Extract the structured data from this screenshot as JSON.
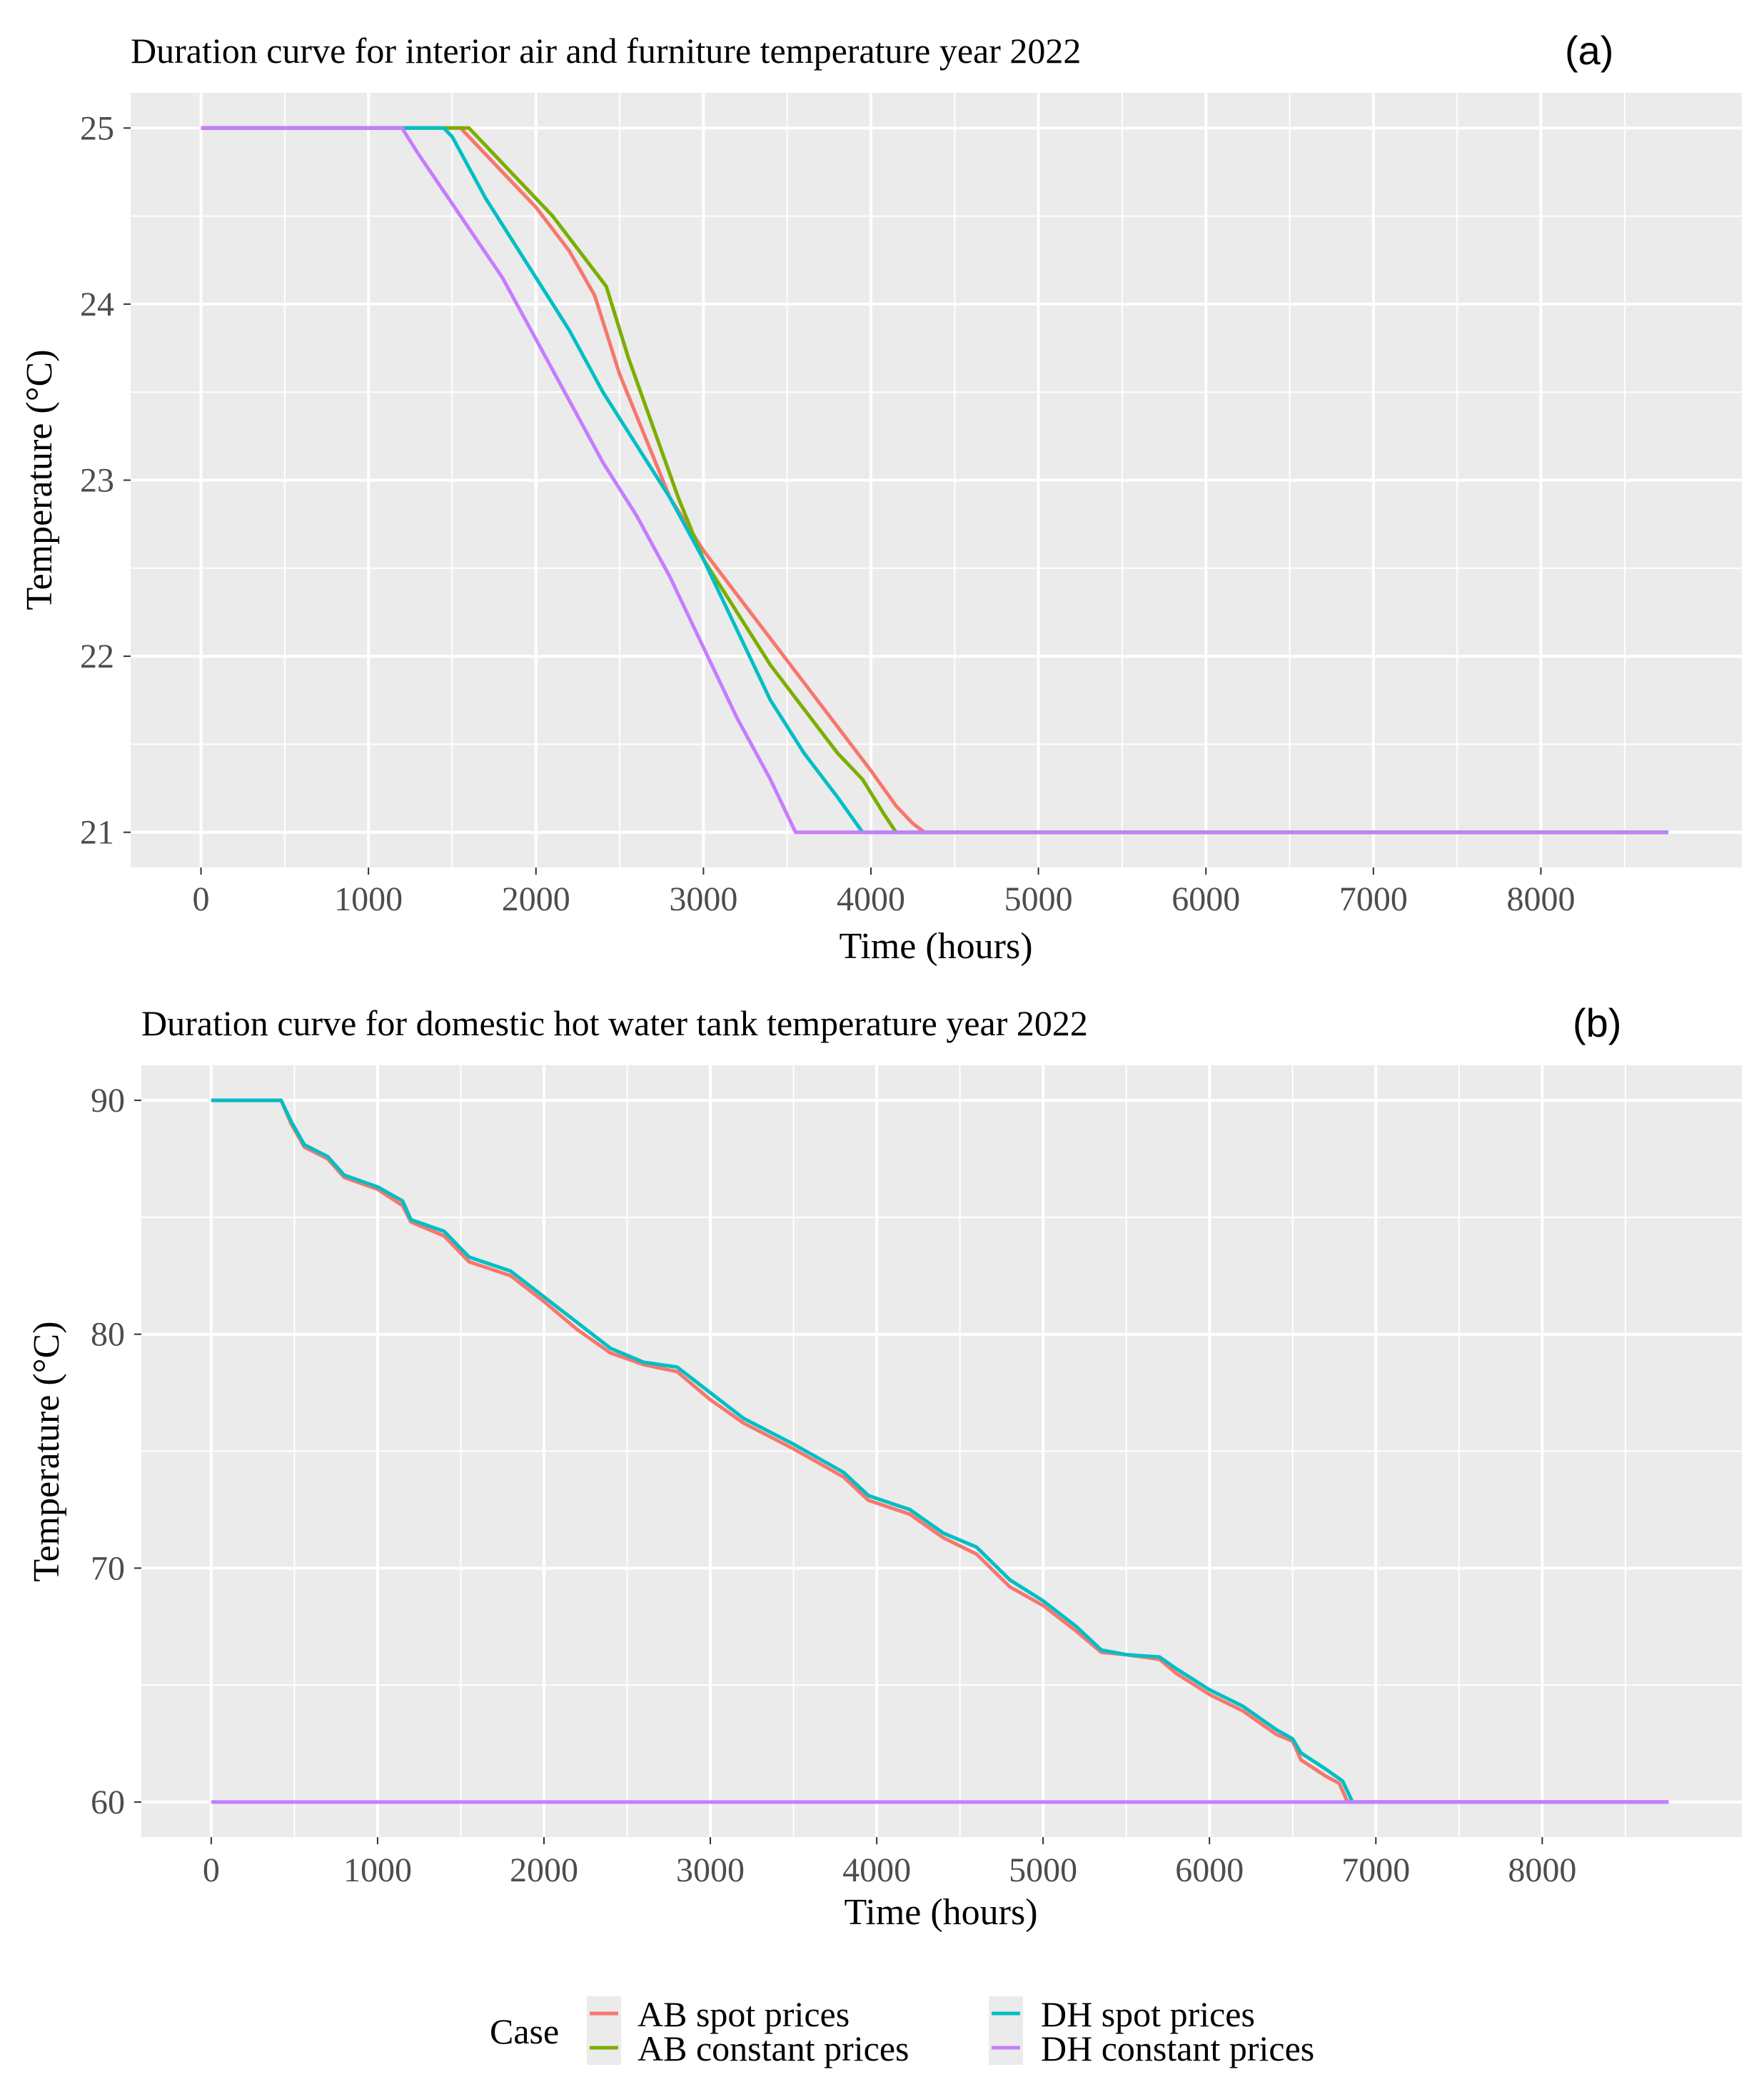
{
  "chart_data": [
    {
      "type": "line",
      "panel": "(a)",
      "title": "Duration curve for interior air and furniture temperature year 2022",
      "xlabel": "Time (hours)",
      "ylabel": "Temperature (°C)",
      "xlim": [
        -420,
        9200
      ],
      "ylim": [
        20.8,
        25.2
      ],
      "xticks": [
        0,
        1000,
        2000,
        3000,
        4000,
        5000,
        6000,
        7000,
        8000
      ],
      "yticks": [
        21,
        22,
        23,
        24,
        25
      ],
      "grid": true,
      "series": [
        {
          "name": "AB spot prices",
          "color": "#F8766D",
          "points": [
            [
              0,
              25
            ],
            [
              1550,
              25
            ],
            [
              1600,
              24.95
            ],
            [
              1800,
              24.75
            ],
            [
              2000,
              24.55
            ],
            [
              2200,
              24.3
            ],
            [
              2350,
              24.05
            ],
            [
              2500,
              23.6
            ],
            [
              2650,
              23.25
            ],
            [
              2800,
              22.9
            ],
            [
              3000,
              22.6
            ],
            [
              3200,
              22.35
            ],
            [
              3400,
              22.1
            ],
            [
              3600,
              21.85
            ],
            [
              3800,
              21.6
            ],
            [
              4000,
              21.35
            ],
            [
              4150,
              21.15
            ],
            [
              4250,
              21.05
            ],
            [
              4320,
              21
            ],
            [
              8760,
              21
            ]
          ]
        },
        {
          "name": "AB constant prices",
          "color": "#7CAE00",
          "points": [
            [
              0,
              25
            ],
            [
              1600,
              25
            ],
            [
              1650,
              24.95
            ],
            [
              1900,
              24.7
            ],
            [
              2100,
              24.5
            ],
            [
              2300,
              24.25
            ],
            [
              2420,
              24.1
            ],
            [
              2550,
              23.7
            ],
            [
              2700,
              23.3
            ],
            [
              2850,
              22.9
            ],
            [
              3000,
              22.55
            ],
            [
              3200,
              22.25
            ],
            [
              3400,
              21.95
            ],
            [
              3600,
              21.7
            ],
            [
              3800,
              21.45
            ],
            [
              3950,
              21.3
            ],
            [
              4080,
              21.1
            ],
            [
              4150,
              21
            ],
            [
              8760,
              21
            ]
          ]
        },
        {
          "name": "DH spot prices",
          "color": "#00BFC4",
          "points": [
            [
              0,
              25
            ],
            [
              1450,
              25
            ],
            [
              1500,
              24.95
            ],
            [
              1700,
              24.6
            ],
            [
              2000,
              24.15
            ],
            [
              2200,
              23.85
            ],
            [
              2400,
              23.5
            ],
            [
              2600,
              23.2
            ],
            [
              2800,
              22.9
            ],
            [
              3000,
              22.55
            ],
            [
              3200,
              22.15
            ],
            [
              3400,
              21.75
            ],
            [
              3600,
              21.45
            ],
            [
              3800,
              21.2
            ],
            [
              3950,
              21
            ],
            [
              8760,
              21
            ]
          ]
        },
        {
          "name": "DH constant prices",
          "color": "#C77CFF",
          "points": [
            [
              0,
              25
            ],
            [
              1200,
              25
            ],
            [
              1300,
              24.85
            ],
            [
              1550,
              24.5
            ],
            [
              1800,
              24.15
            ],
            [
              2000,
              23.8
            ],
            [
              2200,
              23.45
            ],
            [
              2400,
              23.1
            ],
            [
              2600,
              22.8
            ],
            [
              2800,
              22.45
            ],
            [
              3000,
              22.05
            ],
            [
              3200,
              21.65
            ],
            [
              3400,
              21.3
            ],
            [
              3550,
              21
            ],
            [
              8760,
              21
            ]
          ]
        }
      ]
    },
    {
      "type": "line",
      "panel": "(b)",
      "title": "Duration curve for domestic hot water tank temperature year 2022",
      "xlabel": "Time (hours)",
      "ylabel": "Temperature (°C)",
      "xlim": [
        -420,
        9200
      ],
      "ylim": [
        58.5,
        91.5
      ],
      "xticks": [
        0,
        1000,
        2000,
        3000,
        4000,
        5000,
        6000,
        7000,
        8000
      ],
      "yticks": [
        60,
        70,
        80,
        90
      ],
      "grid": true,
      "series": [
        {
          "name": "AB spot prices",
          "color": "#F8766D",
          "points": [
            [
              0,
              90
            ],
            [
              420,
              90
            ],
            [
              480,
              89
            ],
            [
              560,
              88
            ],
            [
              700,
              87.5
            ],
            [
              800,
              86.7
            ],
            [
              1000,
              86.2
            ],
            [
              1150,
              85.5
            ],
            [
              1200,
              84.8
            ],
            [
              1400,
              84.2
            ],
            [
              1550,
              83.1
            ],
            [
              1800,
              82.5
            ],
            [
              2000,
              81.4
            ],
            [
              2200,
              80.2
            ],
            [
              2400,
              79.2
            ],
            [
              2600,
              78.7
            ],
            [
              2800,
              78.4
            ],
            [
              3000,
              77.2
            ],
            [
              3200,
              76.2
            ],
            [
              3500,
              75.1
            ],
            [
              3800,
              73.9
            ],
            [
              3950,
              72.9
            ],
            [
              4200,
              72.3
            ],
            [
              4400,
              71.3
            ],
            [
              4600,
              70.6
            ],
            [
              4800,
              69.2
            ],
            [
              5000,
              68.4
            ],
            [
              5200,
              67.3
            ],
            [
              5350,
              66.4
            ],
            [
              5500,
              66.3
            ],
            [
              5700,
              66.1
            ],
            [
              5800,
              65.5
            ],
            [
              6000,
              64.6
            ],
            [
              6200,
              63.9
            ],
            [
              6400,
              62.9
            ],
            [
              6500,
              62.6
            ],
            [
              6550,
              61.8
            ],
            [
              6700,
              61.1
            ],
            [
              6780,
              60.8
            ],
            [
              6830,
              60
            ],
            [
              8760,
              60
            ]
          ]
        },
        {
          "name": "DH spot prices",
          "color": "#00BFC4",
          "points": [
            [
              0,
              90
            ],
            [
              420,
              90
            ],
            [
              480,
              89.1
            ],
            [
              560,
              88.1
            ],
            [
              700,
              87.6
            ],
            [
              800,
              86.8
            ],
            [
              1000,
              86.3
            ],
            [
              1150,
              85.7
            ],
            [
              1200,
              84.9
            ],
            [
              1400,
              84.4
            ],
            [
              1550,
              83.3
            ],
            [
              1800,
              82.7
            ],
            [
              2000,
              81.6
            ],
            [
              2200,
              80.5
            ],
            [
              2400,
              79.4
            ],
            [
              2600,
              78.8
            ],
            [
              2800,
              78.6
            ],
            [
              3000,
              77.5
            ],
            [
              3200,
              76.4
            ],
            [
              3500,
              75.3
            ],
            [
              3800,
              74.1
            ],
            [
              3950,
              73.1
            ],
            [
              4200,
              72.5
            ],
            [
              4400,
              71.5
            ],
            [
              4600,
              70.9
            ],
            [
              4800,
              69.5
            ],
            [
              5000,
              68.6
            ],
            [
              5200,
              67.5
            ],
            [
              5350,
              66.5
            ],
            [
              5500,
              66.3
            ],
            [
              5700,
              66.2
            ],
            [
              5800,
              65.7
            ],
            [
              6000,
              64.8
            ],
            [
              6200,
              64.1
            ],
            [
              6400,
              63.1
            ],
            [
              6500,
              62.7
            ],
            [
              6550,
              62.1
            ],
            [
              6700,
              61.4
            ],
            [
              6800,
              60.9
            ],
            [
              6860,
              60
            ],
            [
              8760,
              60
            ]
          ]
        },
        {
          "name": "DH constant prices",
          "color": "#C77CFF",
          "points": [
            [
              0,
              60
            ],
            [
              8760,
              60
            ]
          ]
        }
      ]
    }
  ],
  "legend": {
    "title": "Case",
    "position": "bottom",
    "items": [
      {
        "name": "AB spot prices",
        "color": "#F8766D"
      },
      {
        "name": "AB constant prices",
        "color": "#7CAE00"
      },
      {
        "name": "DH spot prices",
        "color": "#00BFC4"
      },
      {
        "name": "DH constant prices",
        "color": "#C77CFF"
      }
    ]
  }
}
